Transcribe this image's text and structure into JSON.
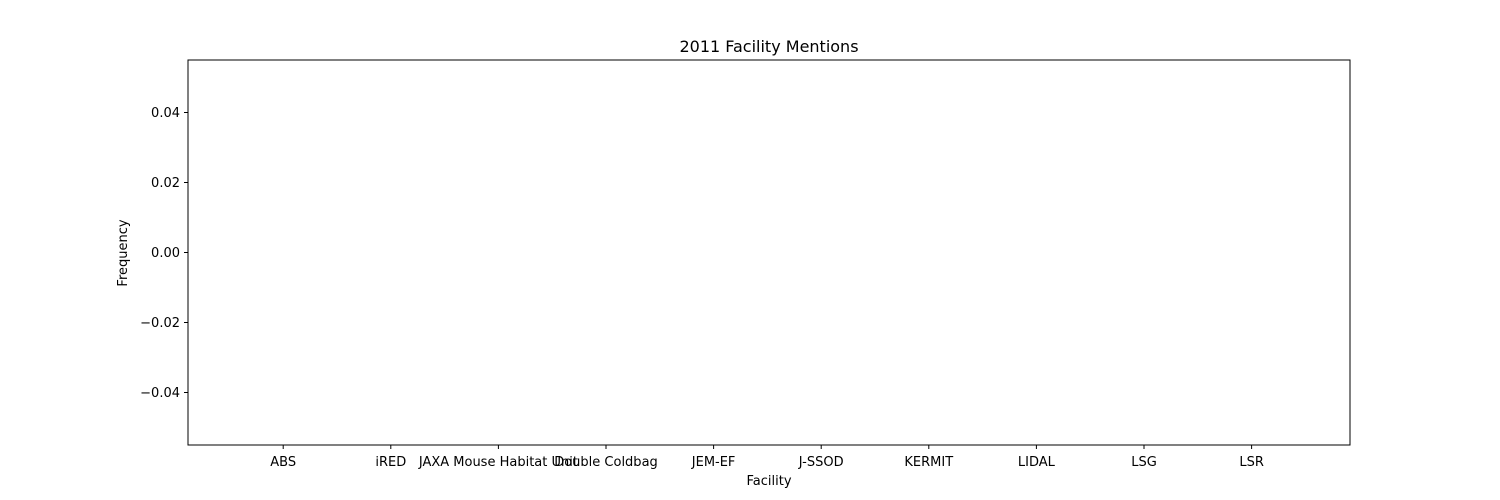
{
  "chart_data": {
    "type": "bar",
    "title": "2011 Facility Mentions",
    "xlabel": "Facility",
    "ylabel": "Frequency",
    "categories": [
      "ABS",
      "iRED",
      "JAXA Mouse Habitat Unit",
      "Double Coldbag",
      "JEM-EF",
      "J-SSOD",
      "KERMIT",
      "LIDAL",
      "LSG",
      "LSR"
    ],
    "values": [
      0,
      0,
      0,
      0,
      0,
      0,
      0,
      0,
      0,
      0
    ],
    "ylim": [
      -0.055,
      0.055
    ],
    "yticks": [
      -0.04,
      -0.02,
      0.0,
      0.02,
      0.04
    ],
    "ytick_labels": [
      "−0.04",
      "−0.02",
      "0.00",
      "0.02",
      "0.04"
    ],
    "grid": false,
    "colors": {
      "axis": "#000000",
      "background": "#ffffff",
      "bar": "#1f77b4"
    }
  }
}
